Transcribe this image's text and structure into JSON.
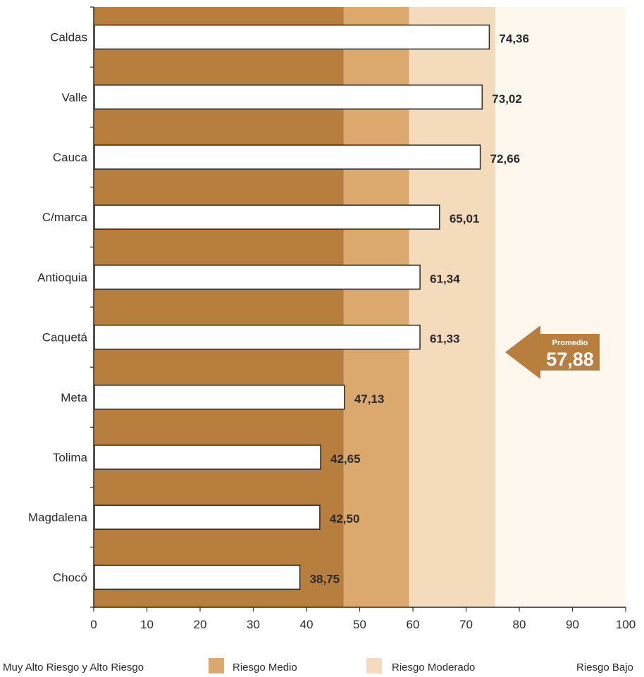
{
  "chart_data": {
    "type": "bar",
    "orientation": "horizontal",
    "categories": [
      "Caldas",
      "Valle",
      "Cauca",
      "C/marca",
      "Antioquia",
      "Caquetá",
      "Meta",
      "Tolima",
      "Magdalena",
      "Chocó"
    ],
    "values": [
      74.36,
      73.02,
      72.66,
      65.01,
      61.34,
      61.33,
      47.13,
      42.65,
      42.5,
      38.75
    ],
    "value_labels": [
      "74,36",
      "73,02",
      "72,66",
      "65,01",
      "61,34",
      "61,33",
      "47,13",
      "42,65",
      "42,50",
      "38,75"
    ],
    "xlim": [
      0,
      100
    ],
    "x_ticks": [
      0,
      10,
      20,
      30,
      40,
      50,
      60,
      70,
      80,
      90,
      100
    ],
    "grid": false,
    "bar_color": "#ffffff",
    "risk_bands": [
      {
        "label": "Muy Alto Riesgo y Alto Riesgo",
        "from": 0,
        "to": 47,
        "color": "#b77e3d"
      },
      {
        "label": "Riesgo Medio",
        "from": 47,
        "to": 59.3,
        "color": "#dba96e"
      },
      {
        "label": "Riesgo Moderado",
        "from": 59.3,
        "to": 75.5,
        "color": "#f4dbbb"
      },
      {
        "label": "Riesgo Bajo",
        "from": 75.5,
        "to": 100,
        "color": "#fdf7ee"
      }
    ],
    "average": {
      "title": "Promedio",
      "value": 57.88,
      "value_label": "57,88",
      "color": "#b77e3d"
    },
    "legend_position": "bottom"
  }
}
